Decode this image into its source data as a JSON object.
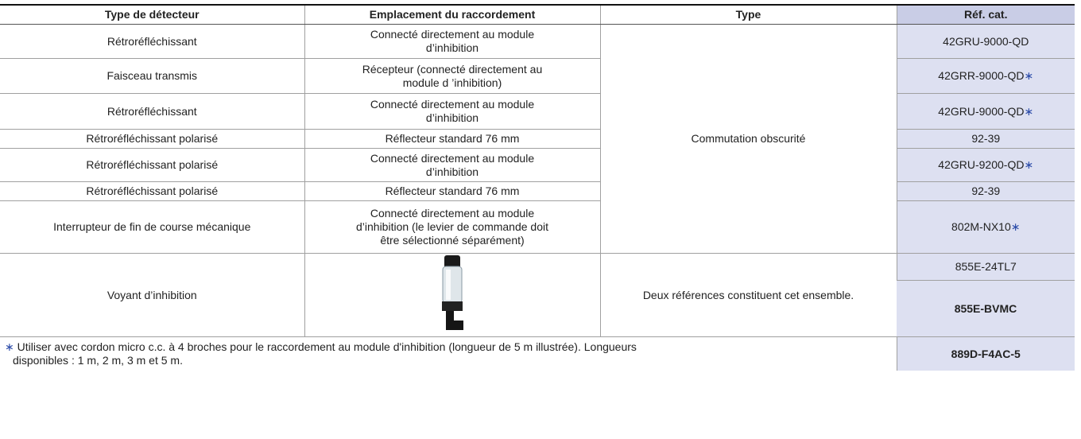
{
  "table": {
    "header": [
      "Type de détecteur",
      "Emplacement du raccordement",
      "Type",
      "Réf. cat."
    ],
    "rows": [
      {
        "detector": "Rétroréfléchissant",
        "location": [
          "Connecté directement au module",
          "d’inhibition"
        ],
        "ref": "42GRU-9000-QD"
      },
      {
        "detector": "Faisceau transmis",
        "location": [
          "Récepteur (connecté directement au",
          "module d ’inhibition)"
        ],
        "ref": "42GRR-9000-QD",
        "mark": "∗"
      },
      {
        "detector": "Rétroréfléchissant",
        "location": [
          "Connecté directement au module",
          "d’inhibition"
        ],
        "ref": "42GRU-9000-QD",
        "mark": "∗"
      },
      {
        "detector": "Rétroréfléchissant polarisé",
        "location": [
          "Réflecteur standard 76 mm"
        ],
        "ref": "92-39"
      },
      {
        "detector": "Rétroréfléchissant polarisé",
        "location": [
          "Connecté directement au module",
          "d’inhibition"
        ],
        "ref": "42GRU-9200-QD",
        "mark": "∗"
      },
      {
        "detector": "Rétroréfléchissant polarisé",
        "location": [
          "Réflecteur standard 76 mm"
        ],
        "ref": "92-39"
      },
      {
        "detector": "Interrupteur de fin de course mécanique",
        "location": [
          "Connecté directement au module",
          "d’inhibition (le levier de commande doit",
          "être sélectionné séparément)"
        ],
        "ref": "802M-NX10",
        "mark": "∗"
      }
    ],
    "group_type": "Commutation obscurité",
    "indicator": {
      "detector": "Voyant d’inhibition",
      "type": "Deux références constituent cet ensemble.",
      "refs": [
        "855E-24TL7",
        "855E-BVMC"
      ]
    },
    "footnote": {
      "mark": "∗",
      "text": [
        "Utiliser avec cordon micro c.c. à 4 broches pour le raccordement au module d'inhibition (longueur de 5 m illustrée). Longueurs",
        "disponibles : 1 m, 2 m, 3 m et 5 m."
      ],
      "ref": "889D-F4AC-5"
    }
  }
}
